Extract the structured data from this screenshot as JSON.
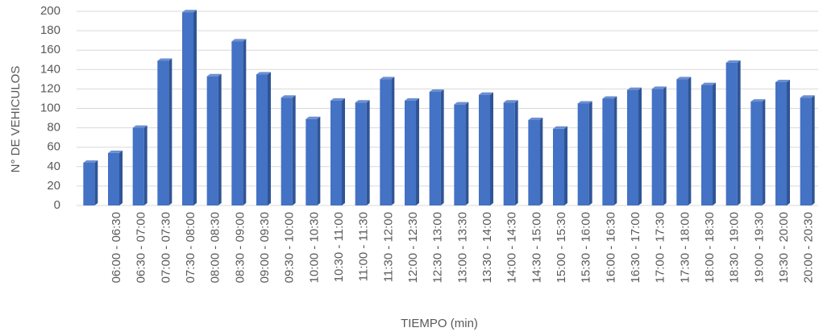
{
  "chart_data": {
    "type": "bar",
    "y_label": "N° DE VEHICULOS",
    "x_label": "TIEMPO (min)",
    "categories": [
      null,
      "06:00 - 06:30",
      "06:30 - 07:00",
      "07:00 - 07:30",
      "07:30 - 08:00",
      "08:00 - 08:30",
      "08:30 - 09:00",
      "09:00 - 09:30",
      "09:30 - 10:00",
      "10:00 - 10:30",
      "10:30 - 11:00",
      "11:00 - 11:30",
      "11:30 - 12:00",
      "12:00 - 12:30",
      "12:30 - 13:00",
      "13:00 - 13:30",
      "13:30 - 14:00",
      "14:00 - 14:30",
      "14:30 - 15:00",
      "15:00 - 15:30",
      "15:30 - 16:00",
      "16:00 - 16:30",
      "16:30 - 17:00",
      "17:00 - 17:30",
      "17:30 - 18:00",
      "18:00 - 18:30",
      "18:30 - 19:00",
      "19:00 - 19:30",
      "19:30 - 20:00",
      "20:00 - 20:30"
    ],
    "values": [
      44,
      54,
      80,
      149,
      199,
      133,
      169,
      135,
      111,
      89,
      108,
      106,
      130,
      108,
      117,
      104,
      114,
      106,
      88,
      79,
      105,
      110,
      119,
      120,
      130,
      124,
      147,
      107,
      127,
      111
    ],
    "color": "#4472c4",
    "ylim": [
      0,
      200
    ],
    "yticks": [
      0,
      20,
      40,
      60,
      80,
      100,
      120,
      140,
      160,
      180,
      200
    ],
    "grid": true
  }
}
